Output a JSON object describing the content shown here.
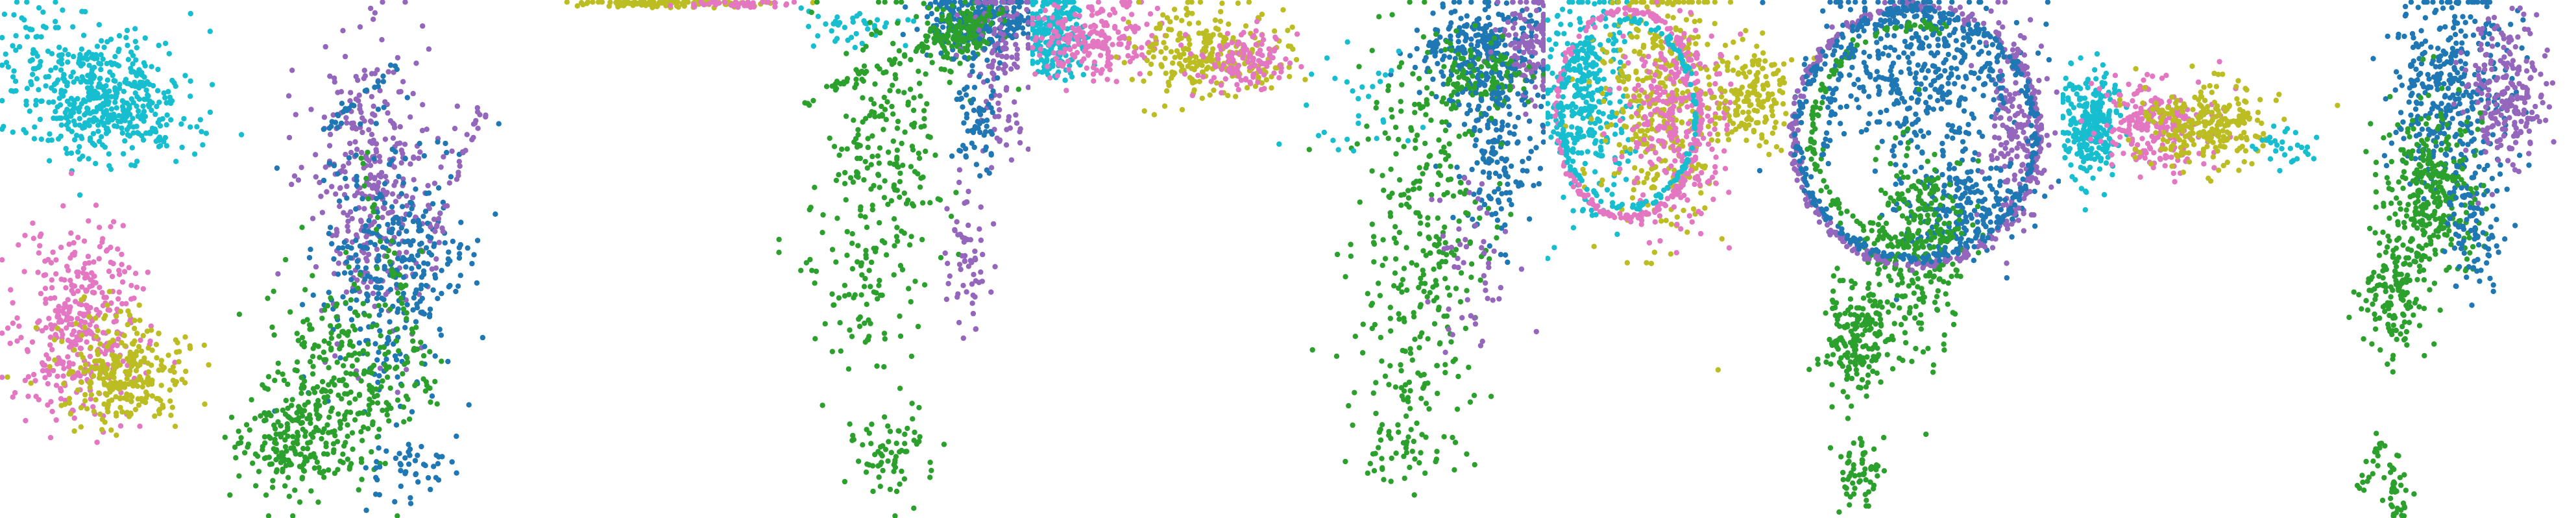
{
  "chart_data": {
    "type": "scatter",
    "grid": false,
    "legend": "none",
    "axes_visible": false,
    "colors": {
      "cyan": "#17becf",
      "pink": "#e377c2",
      "olive": "#bcbd22",
      "green": "#2ca02c",
      "blue": "#1f77b4",
      "purple": "#9467bd"
    },
    "panels": [
      {
        "name": "panel-1",
        "clusters": [
          {
            "color": "cyan",
            "cx": 0.19,
            "cy": 0.18,
            "sx": 0.08,
            "sy": 0.06,
            "n": 450
          },
          {
            "color": "cyan",
            "cx": 0.3,
            "cy": 0.24,
            "sx": 0.07,
            "sy": 0.03,
            "n": 60
          },
          {
            "color": "cyan",
            "cx": 0.05,
            "cy": 0.07,
            "sx": 0.03,
            "sy": 0.03,
            "n": 25
          },
          {
            "color": "pink",
            "cx": 0.15,
            "cy": 0.62,
            "sx": 0.06,
            "sy": 0.1,
            "n": 380
          },
          {
            "color": "olive",
            "cx": 0.24,
            "cy": 0.72,
            "sx": 0.06,
            "sy": 0.05,
            "n": 280
          },
          {
            "color": "purple",
            "cx": 0.72,
            "cy": 0.35,
            "sx": 0.06,
            "sy": 0.14,
            "n": 360
          },
          {
            "color": "blue",
            "cx": 0.77,
            "cy": 0.52,
            "sx": 0.07,
            "sy": 0.13,
            "n": 330
          },
          {
            "color": "green",
            "cx": 0.66,
            "cy": 0.74,
            "sx": 0.07,
            "sy": 0.1,
            "n": 300
          },
          {
            "color": "green",
            "cx": 0.55,
            "cy": 0.85,
            "sx": 0.05,
            "sy": 0.05,
            "n": 160
          },
          {
            "color": "blue",
            "cx": 0.79,
            "cy": 0.91,
            "sx": 0.04,
            "sy": 0.04,
            "n": 50
          }
        ]
      },
      {
        "name": "panel-2",
        "clusters": [
          {
            "color": "olive",
            "cx": 0.32,
            "cy": 0.006,
            "sx": 0.1,
            "sy": 0.004,
            "n": 120
          },
          {
            "color": "pink",
            "cx": 0.42,
            "cy": 0.008,
            "sx": 0.05,
            "sy": 0.004,
            "n": 40
          },
          {
            "color": "blue",
            "cx": 0.9,
            "cy": 0.04,
            "sx": 0.05,
            "sy": 0.03,
            "n": 260
          },
          {
            "color": "green",
            "cx": 0.86,
            "cy": 0.06,
            "sx": 0.04,
            "sy": 0.03,
            "n": 140
          },
          {
            "color": "purple",
            "cx": 0.94,
            "cy": 0.12,
            "sx": 0.03,
            "sy": 0.08,
            "n": 120
          },
          {
            "color": "cyan",
            "cx": 0.66,
            "cy": 0.05,
            "sx": 0.05,
            "sy": 0.02,
            "n": 40
          },
          {
            "color": "green",
            "cx": 0.72,
            "cy": 0.3,
            "sx": 0.06,
            "sy": 0.14,
            "n": 220
          },
          {
            "color": "green",
            "cx": 0.65,
            "cy": 0.58,
            "sx": 0.05,
            "sy": 0.1,
            "n": 60
          },
          {
            "color": "green",
            "cx": 0.73,
            "cy": 0.87,
            "sx": 0.04,
            "sy": 0.05,
            "n": 70
          },
          {
            "color": "blue",
            "cx": 0.89,
            "cy": 0.22,
            "sx": 0.02,
            "sy": 0.06,
            "n": 70
          },
          {
            "color": "purple",
            "cx": 0.88,
            "cy": 0.48,
            "sx": 0.02,
            "sy": 0.07,
            "n": 60
          }
        ]
      },
      {
        "name": "panel-3",
        "clusters": [
          {
            "color": "cyan",
            "cx": 0.05,
            "cy": 0.07,
            "sx": 0.03,
            "sy": 0.04,
            "n": 220
          },
          {
            "color": "pink",
            "cx": 0.12,
            "cy": 0.08,
            "sx": 0.06,
            "sy": 0.04,
            "n": 200
          },
          {
            "color": "olive",
            "cx": 0.34,
            "cy": 0.1,
            "sx": 0.08,
            "sy": 0.04,
            "n": 260
          },
          {
            "color": "pink",
            "cx": 0.42,
            "cy": 0.12,
            "sx": 0.05,
            "sy": 0.03,
            "n": 120
          },
          {
            "color": "blue",
            "cx": 0.88,
            "cy": 0.1,
            "sx": 0.06,
            "sy": 0.05,
            "n": 300
          },
          {
            "color": "purple",
            "cx": 0.97,
            "cy": 0.08,
            "sx": 0.03,
            "sy": 0.05,
            "n": 120
          },
          {
            "color": "green",
            "cx": 0.87,
            "cy": 0.14,
            "sx": 0.05,
            "sy": 0.04,
            "n": 120
          },
          {
            "color": "blue",
            "cx": 0.91,
            "cy": 0.3,
            "sx": 0.04,
            "sy": 0.08,
            "n": 160
          },
          {
            "color": "green",
            "cx": 0.76,
            "cy": 0.46,
            "sx": 0.07,
            "sy": 0.18,
            "n": 300
          },
          {
            "color": "green",
            "cx": 0.72,
            "cy": 0.86,
            "sx": 0.04,
            "sy": 0.06,
            "n": 60
          },
          {
            "color": "purple",
            "cx": 0.85,
            "cy": 0.52,
            "sx": 0.04,
            "sy": 0.1,
            "n": 50
          },
          {
            "color": "cyan",
            "cx": 0.6,
            "cy": 0.2,
            "sx": 0.08,
            "sy": 0.08,
            "n": 30
          }
        ]
      },
      {
        "name": "panel-4",
        "clusters": [
          {
            "color": "cyan",
            "cx": 0.08,
            "cy": 0.18,
            "sx": 0.04,
            "sy": 0.1,
            "n": 320
          },
          {
            "color": "olive",
            "cx": 0.22,
            "cy": 0.2,
            "sx": 0.06,
            "sy": 0.12,
            "n": 380
          },
          {
            "color": "pink",
            "cx": 0.26,
            "cy": 0.24,
            "sx": 0.05,
            "sy": 0.1,
            "n": 280
          },
          {
            "color": "olive",
            "cx": 0.4,
            "cy": 0.18,
            "sx": 0.04,
            "sy": 0.05,
            "n": 160
          },
          {
            "color": "blue",
            "cx": 0.72,
            "cy": 0.14,
            "sx": 0.09,
            "sy": 0.09,
            "n": 380
          },
          {
            "color": "purple",
            "cx": 0.91,
            "cy": 0.26,
            "sx": 0.03,
            "sy": 0.1,
            "n": 180
          },
          {
            "color": "blue",
            "cx": 0.8,
            "cy": 0.4,
            "sx": 0.06,
            "sy": 0.05,
            "n": 220
          },
          {
            "color": "green",
            "cx": 0.72,
            "cy": 0.48,
            "sx": 0.05,
            "sy": 0.1,
            "n": 300
          },
          {
            "color": "green",
            "cx": 0.6,
            "cy": 0.66,
            "sx": 0.03,
            "sy": 0.06,
            "n": 180
          },
          {
            "color": "green",
            "cx": 0.61,
            "cy": 0.9,
            "sx": 0.02,
            "sy": 0.04,
            "n": 60
          }
        ]
      },
      {
        "name": "panel-5",
        "clusters": [
          {
            "color": "cyan",
            "cx": 0.06,
            "cy": 0.24,
            "sx": 0.03,
            "sy": 0.05,
            "n": 260
          },
          {
            "color": "pink",
            "cx": 0.18,
            "cy": 0.24,
            "sx": 0.05,
            "sy": 0.04,
            "n": 240
          },
          {
            "color": "olive",
            "cx": 0.28,
            "cy": 0.24,
            "sx": 0.06,
            "sy": 0.04,
            "n": 260
          },
          {
            "color": "cyan",
            "cx": 0.44,
            "cy": 0.28,
            "sx": 0.03,
            "sy": 0.02,
            "n": 30
          },
          {
            "color": "blue",
            "cx": 0.76,
            "cy": 0.18,
            "sx": 0.06,
            "sy": 0.1,
            "n": 380
          },
          {
            "color": "purple",
            "cx": 0.86,
            "cy": 0.18,
            "sx": 0.04,
            "sy": 0.07,
            "n": 220
          },
          {
            "color": "green",
            "cx": 0.72,
            "cy": 0.38,
            "sx": 0.05,
            "sy": 0.08,
            "n": 320
          },
          {
            "color": "green",
            "cx": 0.65,
            "cy": 0.56,
            "sx": 0.03,
            "sy": 0.06,
            "n": 140
          },
          {
            "color": "blue",
            "cx": 0.8,
            "cy": 0.44,
            "sx": 0.03,
            "sy": 0.06,
            "n": 90
          },
          {
            "color": "green",
            "cx": 0.65,
            "cy": 0.94,
            "sx": 0.01,
            "sy": 0.04,
            "n": 40
          }
        ]
      }
    ],
    "rings": [
      {
        "panel": "panel-4",
        "cx": 0.16,
        "cy": 0.22,
        "rx": 0.14,
        "ry": 0.2,
        "color": "pink",
        "n": 220
      },
      {
        "panel": "panel-4",
        "cx": 0.16,
        "cy": 0.22,
        "rx": 0.13,
        "ry": 0.18,
        "color": "cyan",
        "n": 160
      },
      {
        "panel": "panel-4",
        "cx": 0.72,
        "cy": 0.26,
        "rx": 0.24,
        "ry": 0.25,
        "color": "purple",
        "n": 320
      },
      {
        "panel": "panel-4",
        "cx": 0.72,
        "cy": 0.26,
        "rx": 0.23,
        "ry": 0.24,
        "color": "blue",
        "n": 280
      }
    ],
    "arcs": [
      {
        "panel": "panel-4",
        "cx": 0.72,
        "cy": 0.26,
        "rx": 0.2,
        "ry": 0.21,
        "color": "green",
        "from": 0.35,
        "to": 1.6,
        "n": 140
      },
      {
        "panel": "panel-4",
        "cx": 0.72,
        "cy": 0.3,
        "rx": 0.18,
        "ry": 0.28,
        "color": "blue",
        "from": 1.0,
        "to": 1.9,
        "n": 90
      }
    ],
    "lines": [
      {
        "panel": "panel-1",
        "x0": 0.7,
        "y0": 0.3,
        "x1": 0.84,
        "y1": 0.78,
        "color": "green",
        "n": 50
      },
      {
        "panel": "panel-1",
        "x0": 0.63,
        "y0": 0.25,
        "x1": 0.78,
        "y1": 0.12,
        "color": "blue",
        "n": 25
      },
      {
        "panel": "panel-1",
        "x0": 0.84,
        "y0": 0.45,
        "x1": 0.94,
        "y1": 0.2,
        "color": "purple",
        "n": 30
      },
      {
        "panel": "panel-2",
        "x0": 0.55,
        "y0": 0.2,
        "x1": 0.95,
        "y1": 0.02,
        "color": "green",
        "n": 60
      },
      {
        "panel": "panel-5",
        "x0": 0.58,
        "y0": 0.95,
        "x1": 0.62,
        "y1": 0.85,
        "color": "green",
        "n": 20
      }
    ]
  }
}
